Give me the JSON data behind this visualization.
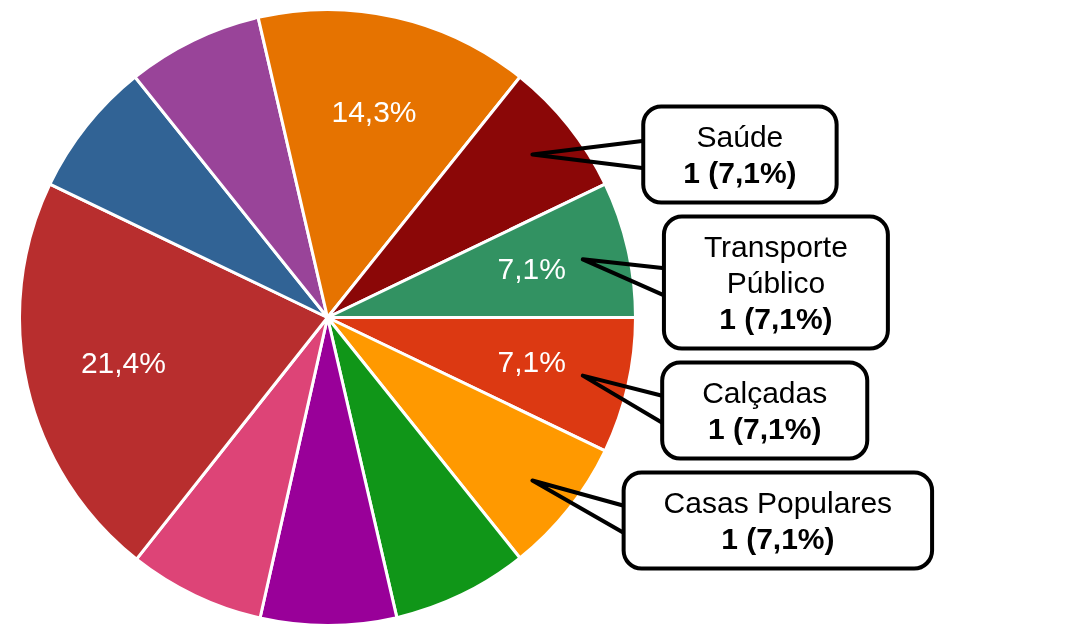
{
  "chart_data": {
    "type": "pie",
    "categories": [
      "Calçadas",
      "Casas Populares",
      null,
      null,
      null,
      null,
      null,
      null,
      null,
      "Saúde",
      "Transporte Público"
    ],
    "values": [
      7.1,
      7.1,
      7.1,
      7.1,
      7.1,
      21.4,
      7.1,
      7.1,
      14.3,
      7.1,
      7.1
    ],
    "colors": [
      "#dc3912",
      "#ff9900",
      "#109618",
      "#990099",
      "#dd4477",
      "#b82e2e",
      "#316395",
      "#994499",
      "#e67300",
      "#8b0707",
      "#329262"
    ],
    "value_labels": [
      "7,1%",
      null,
      null,
      null,
      null,
      "21,4%",
      null,
      null,
      "14,3%",
      null,
      "7,1%"
    ],
    "annotations": [
      {
        "text": "1 (7,1%)",
        "x": "Calçadas"
      },
      {
        "text": "1 (7,1%)",
        "x": "Casas Populares"
      },
      {
        "text": "1 (7,1%)",
        "x": "Saúde"
      },
      {
        "text": "1 (7,1%)",
        "x": "Transporte Público"
      }
    ],
    "legend": false
  }
}
